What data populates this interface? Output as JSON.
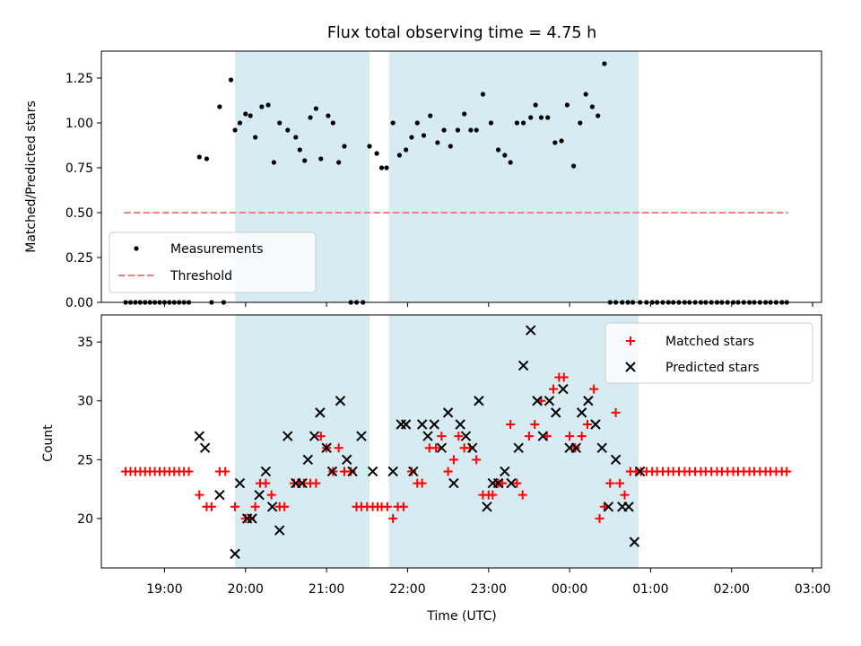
{
  "chart_data": [
    {
      "type": "scatter",
      "title": "Flux total observing time = 4.75 h",
      "xlabel": "",
      "ylabel": "Matched/Predicted stars",
      "ylim": [
        0,
        1.4
      ],
      "yticks": [
        0.0,
        0.25,
        0.5,
        0.75,
        1.0,
        1.25
      ],
      "ytick_labels": [
        "0.00",
        "0.25",
        "0.50",
        "0.75",
        "1.00",
        "1.25"
      ],
      "xlim_hours": [
        18.22,
        27.11
      ],
      "shaded_spans_hours": [
        [
          19.87,
          21.53
        ],
        [
          21.77,
          24.85
        ]
      ],
      "legend": {
        "position": "lower-left",
        "entries": [
          "Measurements",
          "Threshold"
        ]
      },
      "threshold": {
        "name": "Threshold",
        "value": 0.5,
        "x_range_hours": [
          18.5,
          26.7
        ],
        "color": "#f08080"
      },
      "series": [
        {
          "name": "Measurements",
          "color": "#000000",
          "x_hours": [
            18.52,
            18.58,
            18.64,
            18.7,
            18.76,
            18.82,
            18.88,
            18.94,
            19.0,
            19.06,
            19.12,
            19.18,
            19.24,
            19.3,
            19.43,
            19.52,
            19.58,
            19.68,
            19.73,
            19.82,
            19.87,
            19.93,
            20.0,
            20.06,
            20.12,
            20.2,
            20.28,
            20.35,
            20.42,
            20.52,
            20.62,
            20.67,
            20.73,
            20.8,
            20.87,
            20.93,
            21.02,
            21.08,
            21.15,
            21.22,
            21.3,
            21.37,
            21.45,
            21.53,
            21.62,
            21.68,
            21.74,
            21.82,
            21.9,
            21.98,
            22.05,
            22.12,
            22.2,
            22.28,
            22.37,
            22.45,
            22.53,
            22.62,
            22.7,
            22.78,
            22.85,
            22.93,
            23.03,
            23.12,
            23.2,
            23.27,
            23.35,
            23.43,
            23.52,
            23.58,
            23.65,
            23.73,
            23.82,
            23.9,
            23.97,
            24.05,
            24.13,
            24.2,
            24.28,
            24.35,
            24.43,
            24.5,
            24.57,
            24.65,
            24.72,
            24.78,
            24.87,
            24.95,
            25.02,
            25.08,
            25.15,
            25.22,
            25.28,
            25.35,
            25.42,
            25.48,
            25.55,
            25.62,
            25.68,
            25.75,
            25.82,
            25.88,
            25.95,
            26.02,
            26.08,
            26.15,
            26.22,
            26.28,
            26.35,
            26.42,
            26.48,
            26.55,
            26.62,
            26.68
          ],
          "y": [
            0,
            0,
            0,
            0,
            0,
            0,
            0,
            0,
            0,
            0,
            0,
            0,
            0,
            0,
            0.81,
            0.8,
            0,
            1.09,
            0,
            1.24,
            0.96,
            1.0,
            1.05,
            1.04,
            0.92,
            1.09,
            1.1,
            0.78,
            1.0,
            0.96,
            0.92,
            0.85,
            0.79,
            1.03,
            1.08,
            0.8,
            1.04,
            1.0,
            0.78,
            0.87,
            0,
            0,
            0,
            0.87,
            0.83,
            0.75,
            0.75,
            1.0,
            0.82,
            0.85,
            0.92,
            1.0,
            0.93,
            1.04,
            0.89,
            0.96,
            0.87,
            0.96,
            1.05,
            0.96,
            0.96,
            1.16,
            1.0,
            0.85,
            0.82,
            0.78,
            1.0,
            1.0,
            1.03,
            1.1,
            1.03,
            1.03,
            0.89,
            0.9,
            1.1,
            0.76,
            1.0,
            1.16,
            1.09,
            1.04,
            1.33,
            0,
            0,
            0,
            0,
            0,
            0,
            0,
            0,
            0,
            0,
            0,
            0,
            0,
            0,
            0,
            0,
            0,
            0,
            0,
            0,
            0,
            0,
            0,
            0,
            0,
            0,
            0,
            0,
            0,
            0,
            0,
            0,
            0
          ]
        }
      ]
    },
    {
      "type": "scatter",
      "title": "",
      "xlabel": "Time (UTC)",
      "ylabel": "Count",
      "ylim": [
        15.8,
        37.3
      ],
      "yticks": [
        20,
        25,
        30,
        35
      ],
      "ytick_labels": [
        "20",
        "25",
        "30",
        "35"
      ],
      "xlim_hours": [
        18.22,
        27.11
      ],
      "xticks_hours": [
        19,
        20,
        21,
        22,
        23,
        24,
        25,
        26,
        27
      ],
      "xtick_labels": [
        "19:00",
        "20:00",
        "21:00",
        "22:00",
        "23:00",
        "00:00",
        "01:00",
        "02:00",
        "03:00"
      ],
      "shaded_spans_hours": [
        [
          19.87,
          21.53
        ],
        [
          21.77,
          24.85
        ]
      ],
      "legend": {
        "position": "top-right",
        "entries": [
          "Matched stars",
          "Predicted stars"
        ]
      },
      "series": [
        {
          "name": "Matched stars",
          "marker": "plus",
          "color": "#ff0000",
          "x_hours": [
            18.52,
            18.58,
            18.64,
            18.7,
            18.76,
            18.82,
            18.88,
            18.94,
            19.0,
            19.06,
            19.12,
            19.18,
            19.24,
            19.3,
            19.43,
            19.52,
            19.58,
            19.68,
            19.75,
            19.87,
            20.0,
            20.06,
            20.12,
            20.18,
            20.25,
            20.32,
            20.42,
            20.48,
            20.6,
            20.65,
            20.72,
            20.8,
            20.87,
            20.93,
            21.0,
            21.08,
            21.15,
            21.22,
            21.3,
            21.37,
            21.43,
            21.5,
            21.57,
            21.63,
            21.68,
            21.75,
            21.82,
            21.88,
            21.95,
            22.05,
            22.12,
            22.18,
            22.27,
            22.35,
            22.42,
            22.5,
            22.57,
            22.63,
            22.7,
            22.77,
            22.85,
            22.93,
            23.0,
            23.05,
            23.12,
            23.17,
            23.27,
            23.35,
            23.42,
            23.5,
            23.57,
            23.65,
            23.72,
            23.8,
            23.87,
            23.93,
            24.0,
            24.07,
            24.15,
            24.22,
            24.3,
            24.37,
            24.43,
            24.5,
            24.57,
            24.62,
            24.68,
            24.75,
            24.82,
            24.88,
            24.95,
            25.02,
            25.08,
            25.15,
            25.22,
            25.28,
            25.35,
            25.42,
            25.48,
            25.55,
            25.62,
            25.68,
            25.75,
            25.82,
            25.88,
            25.95,
            26.02,
            26.08,
            26.15,
            26.22,
            26.28,
            26.35,
            26.42,
            26.48,
            26.55,
            26.62,
            26.68
          ],
          "y": [
            24,
            24,
            24,
            24,
            24,
            24,
            24,
            24,
            24,
            24,
            24,
            24,
            24,
            24,
            22,
            21,
            21,
            24,
            24,
            21,
            20,
            20,
            21,
            23,
            23,
            22,
            21,
            21,
            23,
            23,
            23,
            23,
            23,
            27,
            26,
            24,
            26,
            24,
            24,
            21,
            21,
            21,
            21,
            21,
            21,
            21,
            20,
            21,
            21,
            24,
            23,
            23,
            26,
            26,
            27,
            24,
            25,
            27,
            26,
            26,
            25,
            22,
            22,
            22,
            23,
            23,
            28,
            23,
            22,
            27,
            28,
            30,
            27,
            31,
            32,
            32,
            27,
            26,
            27,
            28,
            31,
            20,
            21,
            23,
            29,
            23,
            22,
            24,
            24,
            24,
            24,
            24,
            24,
            24,
            24,
            24,
            24,
            24,
            24,
            24,
            24,
            24,
            24,
            24,
            24,
            24,
            24,
            24,
            24,
            24,
            24,
            24,
            24,
            24,
            24,
            24,
            24
          ]
        },
        {
          "name": "Predicted stars",
          "marker": "x",
          "color": "#000000",
          "x_hours": [
            19.43,
            19.5,
            19.68,
            19.87,
            19.93,
            20.02,
            20.08,
            20.17,
            20.25,
            20.33,
            20.42,
            20.52,
            20.62,
            20.7,
            20.77,
            20.85,
            20.92,
            21.0,
            21.07,
            21.17,
            21.25,
            21.32,
            21.43,
            21.57,
            21.82,
            21.92,
            21.98,
            22.07,
            22.18,
            22.25,
            22.33,
            22.42,
            22.5,
            22.57,
            22.65,
            22.72,
            22.8,
            22.88,
            22.98,
            23.05,
            23.12,
            23.2,
            23.28,
            23.37,
            23.43,
            23.52,
            23.6,
            23.67,
            23.75,
            23.83,
            23.92,
            24.0,
            24.08,
            24.15,
            24.23,
            24.32,
            24.4,
            24.48,
            24.57,
            24.65,
            24.73,
            24.8,
            24.87
          ],
          "y": [
            27,
            26,
            22,
            17,
            23,
            20,
            20,
            22,
            24,
            21,
            19,
            27,
            23,
            23,
            25,
            27,
            29,
            26,
            24,
            30,
            25,
            24,
            27,
            24,
            24,
            28,
            28,
            24,
            28,
            27,
            28,
            26,
            29,
            23,
            28,
            27,
            26,
            30,
            21,
            23,
            23,
            24,
            23,
            26,
            33,
            36,
            30,
            27,
            30,
            29,
            31,
            26,
            26,
            29,
            30,
            28,
            26,
            21,
            25,
            21,
            21,
            18,
            24
          ]
        }
      ]
    }
  ]
}
